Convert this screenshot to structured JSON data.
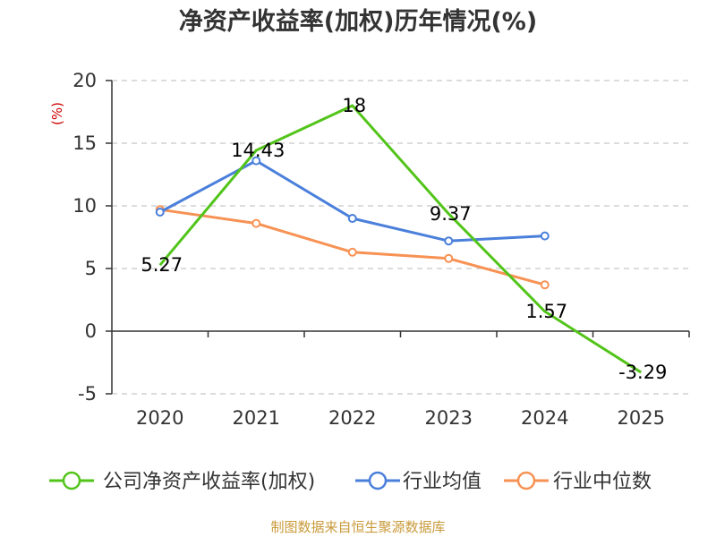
{
  "chart_data": {
    "type": "line",
    "title": "净资产收益率(加权)历年情况(%)",
    "ylabel": "(%)",
    "xlabel": "",
    "categories": [
      "2020",
      "2021",
      "2022",
      "2023",
      "2024",
      "2025"
    ],
    "ylim": [
      -5,
      20
    ],
    "yticks": [
      -5,
      0,
      5,
      10,
      15,
      20
    ],
    "grid": "horizontal dashed",
    "legend_position": "bottom",
    "series": [
      {
        "name": "公司净资产收益率(加权)",
        "color": "#52c41a",
        "values": [
          5.27,
          14.43,
          18,
          9.37,
          1.57,
          -3.29
        ],
        "labels": [
          "5.27",
          "14.43",
          "18",
          "9.37",
          "1.57",
          "-3.29"
        ]
      },
      {
        "name": "行业均值",
        "color": "#4a7fdb",
        "values": [
          9.5,
          13.6,
          9.0,
          7.2,
          7.6,
          null
        ]
      },
      {
        "name": "行业中位数",
        "color": "#f79254",
        "values": [
          9.7,
          8.6,
          6.3,
          5.8,
          3.7,
          null
        ]
      }
    ]
  },
  "footer": {
    "source": "制图数据来自恒生聚源数据库"
  }
}
